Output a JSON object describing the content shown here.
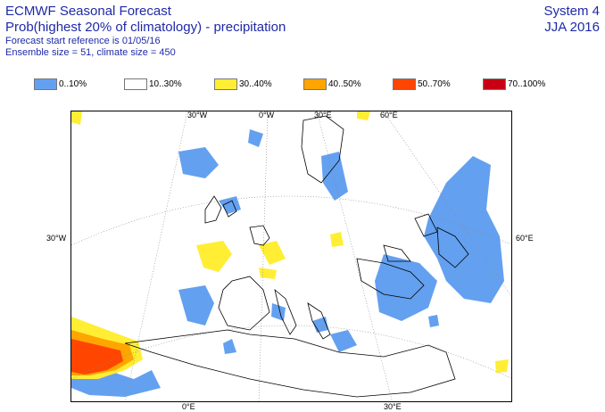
{
  "header": {
    "title": "ECMWF Seasonal Forecast",
    "subtitle": "Prob(highest 20% of climatology) - precipitation",
    "forecast_ref": "Forecast start reference is 01/05/16",
    "ensemble": "Ensemble size = 51, climate size = 450"
  },
  "system": {
    "name": "System 4",
    "period": "JJA 2016"
  },
  "legend": [
    {
      "label": "0..10%",
      "color": "#64a0f0"
    },
    {
      "label": "10..30%",
      "color": "#ffffff"
    },
    {
      "label": "30..40%",
      "color": "#ffee33"
    },
    {
      "label": "40..50%",
      "color": "#ffa500"
    },
    {
      "label": "50..70%",
      "color": "#ff4500"
    },
    {
      "label": "70..100%",
      "color": "#c80014"
    }
  ],
  "graticule_labels": {
    "top": [
      "30°W",
      "0°W",
      "30°E",
      "60°E"
    ],
    "left": "30°W",
    "right": "60°E",
    "bottom": [
      "0°E",
      "30°E"
    ]
  }
}
